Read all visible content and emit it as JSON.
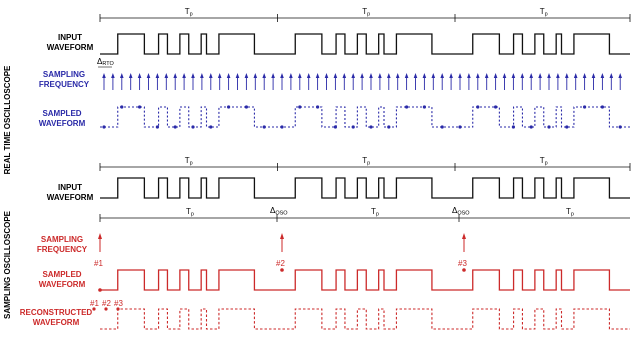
{
  "colors": {
    "black": "#111111",
    "blue": "#2a2aa8",
    "red": "#cc2a2a"
  },
  "top": {
    "side_label": "REAL TIME OSCILLOSCOPE",
    "period_label": "T",
    "period_sub": "p",
    "input_label": [
      "INPUT",
      "WAVEFORM"
    ],
    "sampling_label": [
      "SAMPLING",
      "FREQUENCY"
    ],
    "sampled_label": [
      "SAMPLED",
      "WAVEFORM"
    ],
    "delta_label": "Δ",
    "delta_sub": "RTO"
  },
  "bottom": {
    "side_label": "SAMPLING OSCILLOSCOPE",
    "period_label": "T",
    "period_sub": "p",
    "input_label": [
      "INPUT",
      "WAVEFORM"
    ],
    "sampling_label": [
      "SAMPLING",
      "FREQUENCY"
    ],
    "sampled_label": [
      "SAMPLED",
      "WAVEFORM"
    ],
    "reconstructed_label": [
      "RECONSTRUCTED",
      "WAVEFORM"
    ],
    "delta_label": "Δ",
    "delta_sub": "OSO",
    "markers": [
      "#1",
      "#2",
      "#3"
    ],
    "recon_markers": [
      "#1",
      "#2",
      "#3"
    ]
  }
}
